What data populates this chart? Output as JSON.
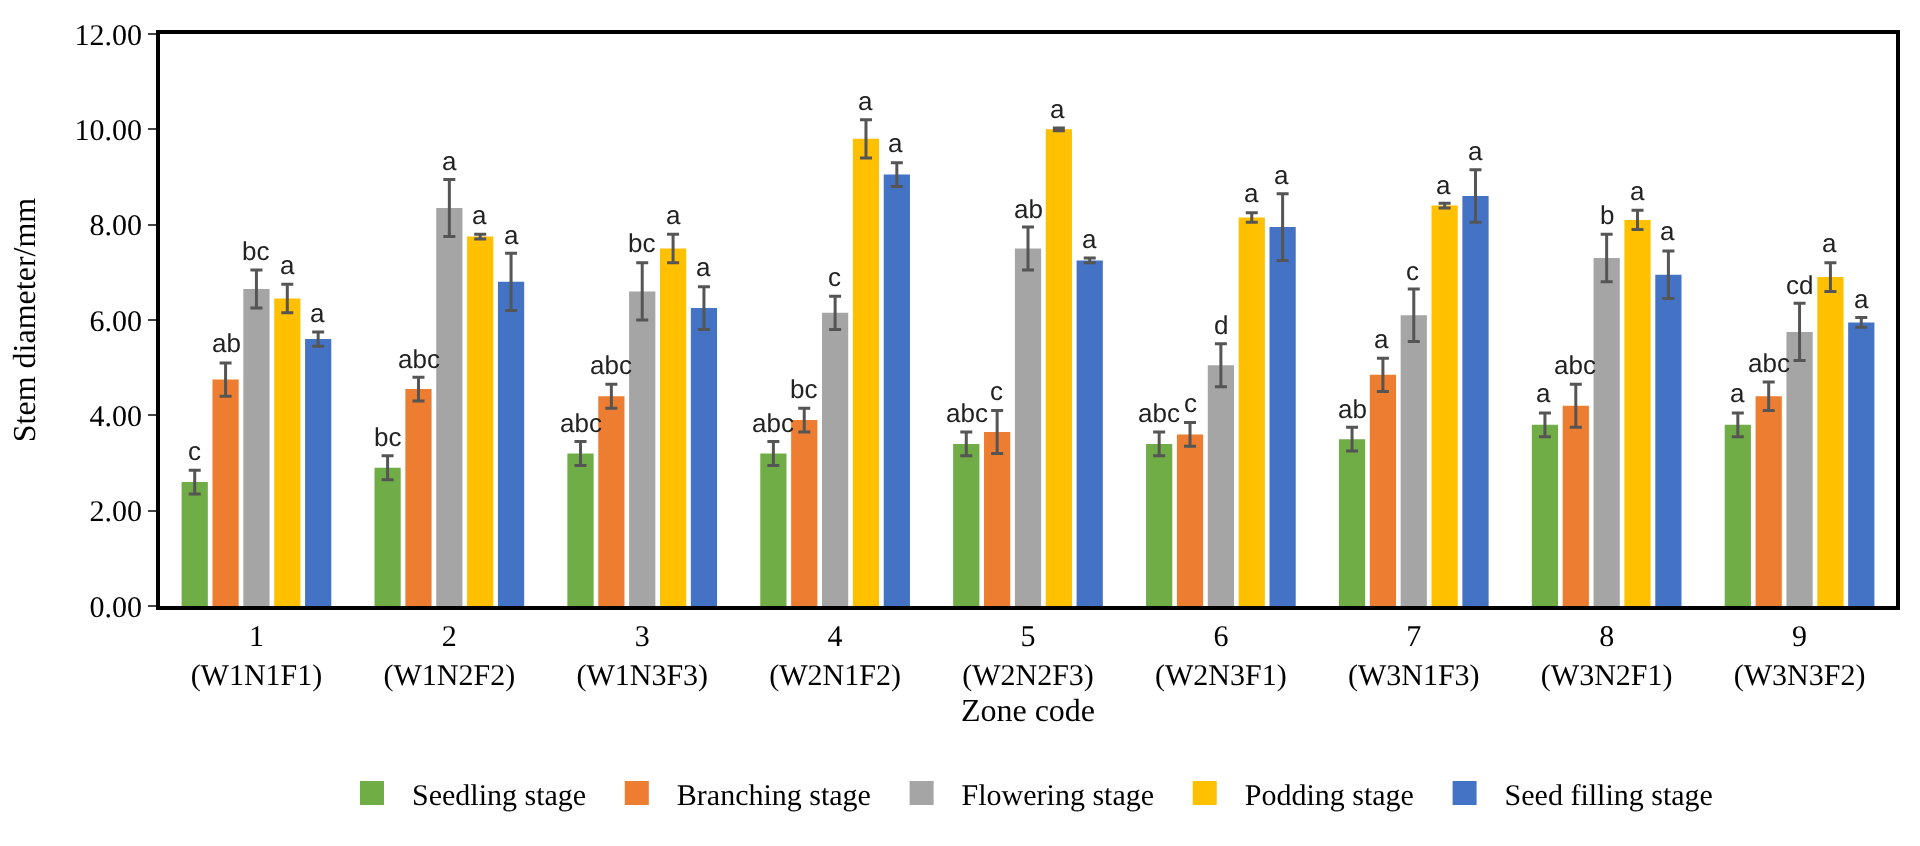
{
  "chart_data": {
    "type": "bar",
    "xlabel": "Zone code",
    "ylabel": "Stem diameter/mm",
    "categories": [
      "1\n(W1N1F1)",
      "2\n(W1N2F2)",
      "3\n(W1N3F3)",
      "4\n(W2N1F2)",
      "5\n(W2N2F3)",
      "6\n(W2N3F1)",
      "7\n(W3N1F3)",
      "8\n(W3N2F1)",
      "9\n(W3N3F2)"
    ],
    "series": [
      {
        "name": "Seedling stage",
        "color": "#70ad47",
        "values": [
          2.6,
          2.9,
          3.2,
          3.2,
          3.4,
          3.4,
          3.5,
          3.8,
          3.8
        ],
        "errors": [
          0.25,
          0.25,
          0.25,
          0.25,
          0.25,
          0.25,
          0.25,
          0.25,
          0.25
        ],
        "value_labels": [
          "c",
          "bc",
          "abc",
          "abc",
          "abc",
          "abc",
          "ab",
          "a",
          "a"
        ]
      },
      {
        "name": "Branching stage",
        "color": "#ed7d31",
        "values": [
          4.75,
          4.55,
          4.4,
          3.9,
          3.65,
          3.6,
          4.85,
          4.2,
          4.4
        ],
        "errors": [
          0.35,
          0.25,
          0.25,
          0.25,
          0.45,
          0.25,
          0.35,
          0.45,
          0.3
        ],
        "value_labels": [
          "ab",
          "abc",
          "abc",
          "bc",
          "c",
          "c",
          "a",
          "abc",
          "abc"
        ]
      },
      {
        "name": "Flowering stage",
        "color": "#a5a5a5",
        "values": [
          6.65,
          8.35,
          6.6,
          6.15,
          7.5,
          5.05,
          6.1,
          7.3,
          5.75
        ],
        "errors": [
          0.4,
          0.6,
          0.6,
          0.35,
          0.45,
          0.45,
          0.55,
          0.5,
          0.6
        ],
        "value_labels": [
          "bc",
          "a",
          "bc",
          "c",
          "ab",
          "d",
          "c",
          "b",
          "cd"
        ]
      },
      {
        "name": "Podding stage",
        "color": "#ffc000",
        "values": [
          6.45,
          7.75,
          7.5,
          9.8,
          10.0,
          8.15,
          8.4,
          8.1,
          6.9
        ],
        "errors": [
          0.3,
          0.05,
          0.3,
          0.4,
          0.03,
          0.1,
          0.05,
          0.2,
          0.3
        ],
        "value_labels": [
          "a",
          "a",
          "a",
          "a",
          "a",
          "a",
          "a",
          "a",
          "a"
        ]
      },
      {
        "name": "Seed filling stage",
        "color": "#4472c4",
        "values": [
          5.6,
          6.8,
          6.25,
          9.05,
          7.25,
          7.95,
          8.6,
          6.95,
          5.95
        ],
        "errors": [
          0.15,
          0.6,
          0.45,
          0.25,
          0.05,
          0.7,
          0.55,
          0.5,
          0.1
        ],
        "value_labels": [
          "a",
          "a",
          "a",
          "a",
          "a",
          "a",
          "a",
          "a",
          "a"
        ]
      }
    ],
    "ylim": [
      0,
      12
    ],
    "yticks": [
      {
        "value": 0,
        "label": "0.00"
      },
      {
        "value": 2,
        "label": "2.00"
      },
      {
        "value": 4,
        "label": "4.00"
      },
      {
        "value": 6,
        "label": "6.00"
      },
      {
        "value": 8,
        "label": "8.00"
      },
      {
        "value": 10,
        "label": "10.00"
      },
      {
        "value": 12,
        "label": "12.00"
      }
    ],
    "legend": "bottom"
  }
}
